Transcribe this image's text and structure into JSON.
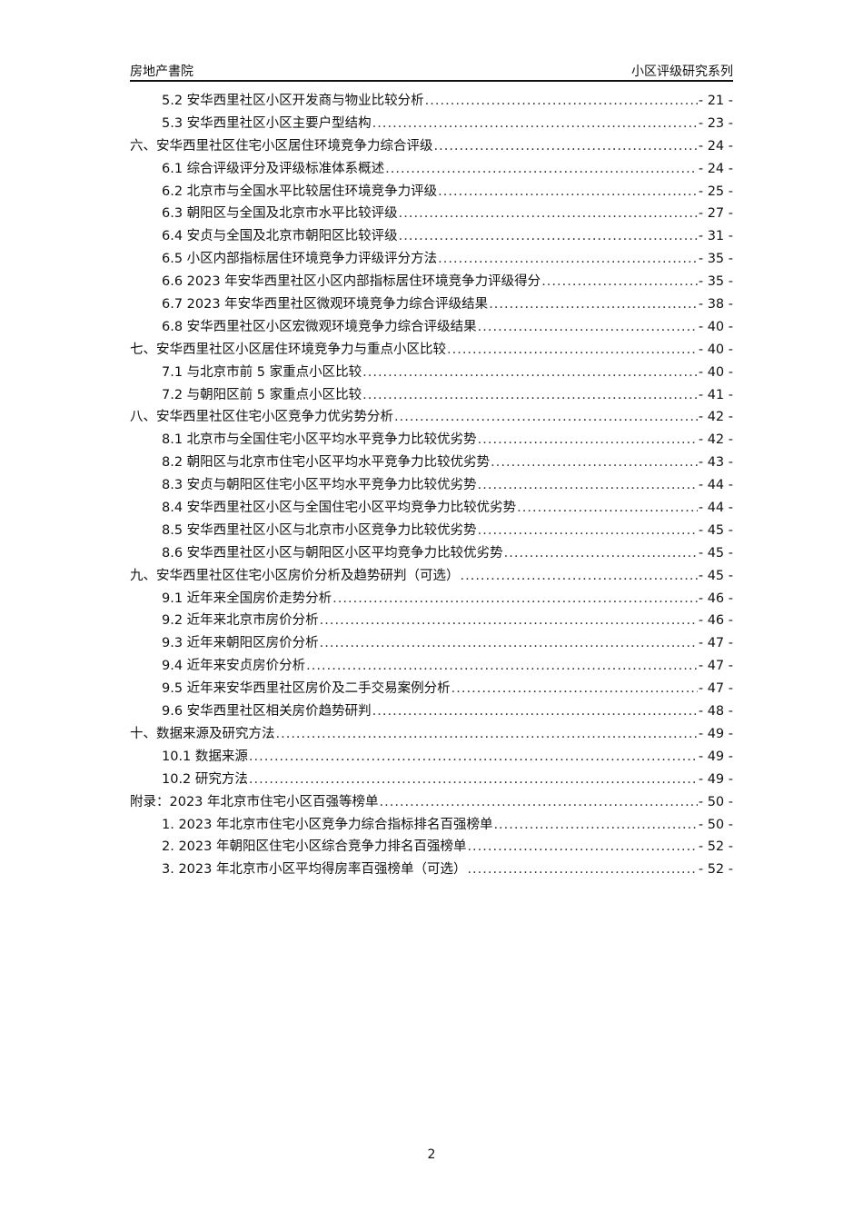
{
  "header": {
    "left": "房地产書院",
    "right": "小区评级研究系列"
  },
  "toc": [
    {
      "level": 2,
      "title": "5.2 安华西里社区小区开发商与物业比较分析",
      "page": "- 21 -"
    },
    {
      "level": 2,
      "title": "5.3 安华西里社区小区主要户型结构",
      "page": "- 23 -"
    },
    {
      "level": 1,
      "title": "六、安华西里社区住宅小区居住环境竞争力综合评级",
      "page": "- 24 -"
    },
    {
      "level": 2,
      "title": "6.1 综合评级评分及评级标准体系概述",
      "page": "- 24 -"
    },
    {
      "level": 2,
      "title": "6.2 北京市与全国水平比较居住环境竞争力评级",
      "page": "- 25 -"
    },
    {
      "level": 2,
      "title": "6.3 朝阳区与全国及北京市水平比较评级",
      "page": "- 27 -"
    },
    {
      "level": 2,
      "title": "6.4 安贞与全国及北京市朝阳区比较评级",
      "page": "- 31 -"
    },
    {
      "level": 2,
      "title": "6.5 小区内部指标居住环境竞争力评级评分方法",
      "page": "- 35 -"
    },
    {
      "level": 2,
      "title": "6.6 2023 年安华西里社区小区内部指标居住环境竞争力评级得分",
      "page": "- 35 -"
    },
    {
      "level": 2,
      "title": "6.7 2023 年安华西里社区微观环境竞争力综合评级结果",
      "page": "- 38 -"
    },
    {
      "level": 2,
      "title": "6.8 安华西里社区小区宏微观环境竞争力综合评级结果",
      "page": "- 40 -"
    },
    {
      "level": 1,
      "title": "七、安华西里社区小区居住环境竞争力与重点小区比较",
      "page": "- 40 -"
    },
    {
      "level": 2,
      "title": "7.1 与北京市前 5 家重点小区比较",
      "page": "- 40 -"
    },
    {
      "level": 2,
      "title": "7.2 与朝阳区前 5 家重点小区比较",
      "page": "- 41 -"
    },
    {
      "level": 1,
      "title": "八、安华西里社区住宅小区竞争力优劣势分析",
      "page": "- 42 -"
    },
    {
      "level": 2,
      "title": "8.1 北京市与全国住宅小区平均水平竞争力比较优劣势",
      "page": "- 42 -"
    },
    {
      "level": 2,
      "title": "8.2 朝阳区与北京市住宅小区平均水平竞争力比较优劣势",
      "page": "- 43 -"
    },
    {
      "level": 2,
      "title": "8.3 安贞与朝阳区住宅小区平均水平竞争力比较优劣势",
      "page": "- 44 -"
    },
    {
      "level": 2,
      "title": "8.4 安华西里社区小区与全国住宅小区平均竞争力比较优劣势",
      "page": "- 44 -"
    },
    {
      "level": 2,
      "title": "8.5 安华西里社区小区与北京市小区竞争力比较优劣势",
      "page": "- 45 -"
    },
    {
      "level": 2,
      "title": "8.6 安华西里社区小区与朝阳区小区平均竞争力比较优劣势",
      "page": "- 45 -"
    },
    {
      "level": 1,
      "title": "九、安华西里社区住宅小区房价分析及趋势研判（可选）",
      "page": "- 45 -"
    },
    {
      "level": 2,
      "title": "9.1 近年来全国房价走势分析",
      "page": "- 46 -"
    },
    {
      "level": 2,
      "title": "9.2 近年来北京市房价分析",
      "page": "- 46 -"
    },
    {
      "level": 2,
      "title": "9.3 近年来朝阳区房价分析",
      "page": "- 47 -"
    },
    {
      "level": 2,
      "title": "9.4 近年来安贞房价分析",
      "page": "- 47 -"
    },
    {
      "level": 2,
      "title": "9.5 近年来安华西里社区房价及二手交易案例分析",
      "page": "- 47 -"
    },
    {
      "level": 2,
      "title": "9.6 安华西里社区相关房价趋势研判",
      "page": "- 48 -"
    },
    {
      "level": 1,
      "title": "十、数据来源及研究方法",
      "page": "- 49 -"
    },
    {
      "level": 2,
      "title": "10.1 数据来源",
      "page": "- 49 -"
    },
    {
      "level": 2,
      "title": "10.2 研究方法",
      "page": "- 49 -"
    },
    {
      "level": 1,
      "title": "附录：2023 年北京市住宅小区百强等榜单",
      "page": "- 50 -"
    },
    {
      "level": 2,
      "title": "1. 2023 年北京市住宅小区竞争力综合指标排名百强榜单",
      "page": "- 50 -"
    },
    {
      "level": 2,
      "title": "2. 2023 年朝阳区住宅小区综合竞争力排名百强榜单",
      "page": "- 52 -"
    },
    {
      "level": 2,
      "title": "3. 2023 年北京市小区平均得房率百强榜单（可选）",
      "page": "- 52 -"
    }
  ],
  "footer": {
    "page_number": "2"
  }
}
